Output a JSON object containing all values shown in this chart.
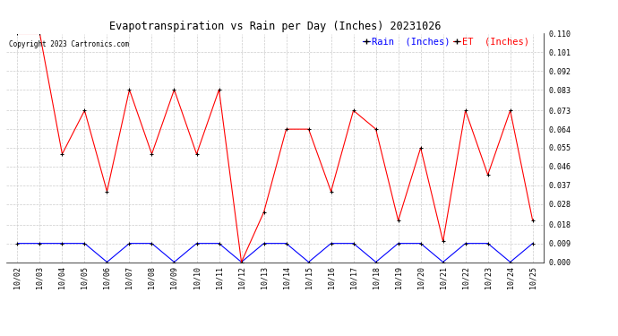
{
  "title": "Evapotranspiration vs Rain per Day (Inches) 20231026",
  "copyright": "Copyright 2023 Cartronics.com",
  "legend_rain": "Rain  (Inches)",
  "legend_et": "ET  (Inches)",
  "dates": [
    "10/02",
    "10/03",
    "10/04",
    "10/05",
    "10/06",
    "10/07",
    "10/08",
    "10/09",
    "10/10",
    "10/11",
    "10/12",
    "10/13",
    "10/14",
    "10/15",
    "10/16",
    "10/17",
    "10/18",
    "10/19",
    "10/20",
    "10/21",
    "10/22",
    "10/23",
    "10/24",
    "10/25"
  ],
  "et_values": [
    0.11,
    0.11,
    0.052,
    0.073,
    0.034,
    0.083,
    0.052,
    0.083,
    0.052,
    0.083,
    0.0,
    0.024,
    0.064,
    0.064,
    0.034,
    0.073,
    0.064,
    0.02,
    0.055,
    0.01,
    0.073,
    0.042,
    0.073,
    0.02
  ],
  "rain_values": [
    0.009,
    0.009,
    0.009,
    0.009,
    0.0,
    0.009,
    0.009,
    0.0,
    0.009,
    0.009,
    0.0,
    0.009,
    0.009,
    0.0,
    0.009,
    0.009,
    0.0,
    0.009,
    0.009,
    0.0,
    0.009,
    0.009,
    0.0,
    0.009
  ],
  "ylim": [
    0.0,
    0.11
  ],
  "yticks": [
    0.0,
    0.009,
    0.018,
    0.028,
    0.037,
    0.046,
    0.055,
    0.064,
    0.073,
    0.083,
    0.092,
    0.101,
    0.11
  ],
  "et_color": "#ff0000",
  "rain_color": "#0000ff",
  "background_color": "#ffffff",
  "grid_color": "#cccccc",
  "title_fontsize": 8.5,
  "tick_fontsize": 6.0,
  "legend_fontsize": 7.5,
  "copyright_fontsize": 5.5
}
